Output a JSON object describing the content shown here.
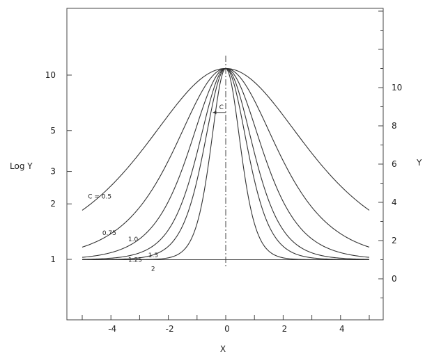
{
  "chart_data": {
    "type": "line",
    "xlabel": "X",
    "ylabel_left": "Log Y",
    "ylabel_right": "Y",
    "x_ticks": [
      -4,
      -2,
      0,
      2,
      4
    ],
    "left_ticks": [
      1,
      2,
      3,
      5,
      10
    ],
    "right_ticks": [
      0,
      2,
      4,
      6,
      8,
      10
    ],
    "xlim": [
      -5,
      5
    ],
    "right_ylim": [
      -1.5,
      14.5
    ],
    "peak": 11,
    "baseline": 1,
    "annotation": "C",
    "series": [
      {
        "label": "C = 0.5",
        "c": 0.5
      },
      {
        "label": "0.75",
        "c": 0.75
      },
      {
        "label": "1.0",
        "c": 1.0
      },
      {
        "label": "1.25",
        "c": 1.25
      },
      {
        "label": "1.5",
        "c": 1.5
      },
      {
        "label": "2",
        "c": 2
      }
    ],
    "line_color": "#333333"
  }
}
